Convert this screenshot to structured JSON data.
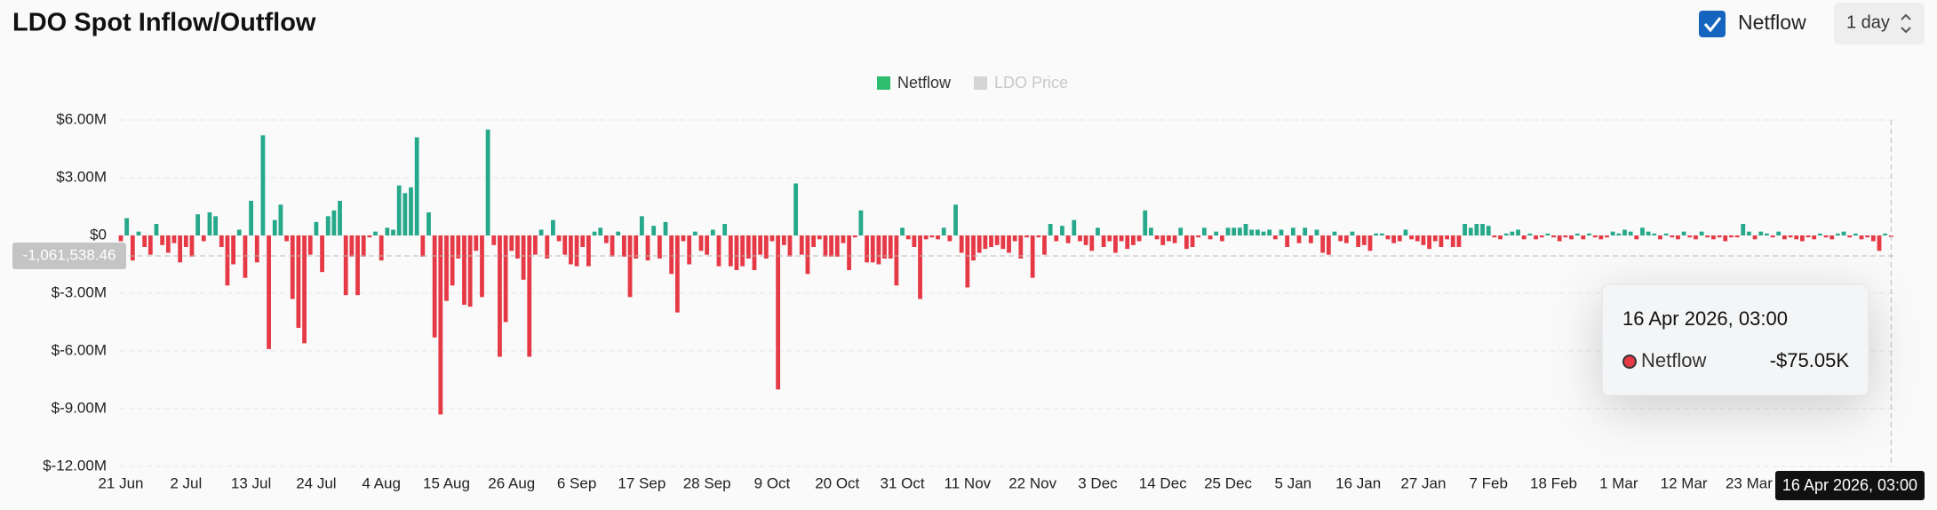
{
  "controls": {
    "toggle_label": "Netflow",
    "interval": "1 day"
  },
  "chart_data": {
    "type": "bar",
    "title": "LDO Spot Inflow/Outflow",
    "categories": [
      "21 Jun",
      null,
      null,
      null,
      null,
      null,
      null,
      null,
      null,
      null,
      null,
      "2 Jul",
      null,
      null,
      null,
      null,
      null,
      null,
      null,
      null,
      null,
      null,
      "13 Jul",
      null,
      null,
      null,
      null,
      null,
      null,
      null,
      null,
      null,
      null,
      "24 Jul",
      null,
      null,
      null,
      null,
      null,
      null,
      null,
      null,
      null,
      null,
      "4 Aug",
      null,
      null,
      null,
      null,
      null,
      null,
      null,
      null,
      null,
      null,
      "15 Aug",
      null,
      null,
      null,
      null,
      null,
      null,
      null,
      null,
      null,
      null,
      "26 Aug",
      null,
      null,
      null,
      null,
      null,
      null,
      null,
      null,
      null,
      null,
      "6 Sep",
      null,
      null,
      null,
      null,
      null,
      null,
      null,
      null,
      null,
      null,
      "17 Sep",
      null,
      null,
      null,
      null,
      null,
      null,
      null,
      null,
      null,
      null,
      "28 Sep",
      null,
      null,
      null,
      null,
      null,
      null,
      null,
      null,
      null,
      null,
      "9 Oct",
      null,
      null,
      null,
      null,
      null,
      null,
      null,
      null,
      null,
      null,
      "20 Oct",
      null,
      null,
      null,
      null,
      null,
      null,
      null,
      null,
      null,
      null,
      "31 Oct",
      null,
      null,
      null,
      null,
      null,
      null,
      null,
      null,
      null,
      null,
      "11 Nov",
      null,
      null,
      null,
      null,
      null,
      null,
      null,
      null,
      null,
      null,
      "22 Nov",
      null,
      null,
      null,
      null,
      null,
      null,
      null,
      null,
      null,
      null,
      "3 Dec",
      null,
      null,
      null,
      null,
      null,
      null,
      null,
      null,
      null,
      null,
      "14 Dec",
      null,
      null,
      null,
      null,
      null,
      null,
      null,
      null,
      null,
      null,
      "25 Dec",
      null,
      null,
      null,
      null,
      null,
      null,
      null,
      null,
      null,
      null,
      "5 Jan",
      null,
      null,
      null,
      null,
      null,
      null,
      null,
      null,
      null,
      null,
      "16 Jan",
      null,
      null,
      null,
      null,
      null,
      null,
      null,
      null,
      null,
      null,
      "27 Jan",
      null,
      null,
      null,
      null,
      null,
      null,
      null,
      null,
      null,
      null,
      "7 Feb",
      null,
      null,
      null,
      null,
      null,
      null,
      null,
      null,
      null,
      null,
      "18 Feb",
      null,
      null,
      null,
      null,
      null,
      null,
      null,
      null,
      null,
      null,
      "1 Mar",
      null,
      null,
      null,
      null,
      null,
      null,
      null,
      null,
      null,
      null,
      "12 Mar",
      null,
      null,
      null,
      null,
      null,
      null,
      null,
      null,
      null,
      null,
      "23 Mar",
      null,
      null,
      null,
      null,
      null,
      null,
      null,
      null,
      null,
      null,
      null,
      null,
      null,
      null,
      null,
      null,
      null,
      null,
      null,
      null,
      null,
      null,
      null,
      "16 Apr 2026, 03:00"
    ],
    "series": [
      {
        "name": "Netflow",
        "color": "#26a98b",
        "negative_color": "#e63946",
        "legend_color": "#2ebd6e",
        "values": [
          -0.3,
          0.9,
          -1.3,
          0.2,
          -0.6,
          -1.0,
          0.6,
          -0.5,
          -0.9,
          -0.4,
          -1.4,
          -0.6,
          -1.1,
          1.1,
          -0.3,
          1.2,
          1.0,
          -0.6,
          -2.6,
          -1.5,
          0.3,
          -2.2,
          1.8,
          -1.4,
          5.2,
          -5.9,
          0.8,
          1.6,
          -0.3,
          -3.3,
          -4.8,
          -5.6,
          -1.0,
          0.7,
          -1.9,
          1.0,
          1.3,
          1.8,
          -3.1,
          -1.1,
          -3.1,
          -1.1,
          -0.1,
          0.2,
          -1.3,
          0.4,
          0.3,
          2.6,
          2.2,
          2.5,
          5.1,
          -1.1,
          1.2,
          -5.3,
          -9.3,
          -3.4,
          -2.6,
          -1.2,
          -3.6,
          -3.7,
          -0.8,
          -3.2,
          5.5,
          -0.5,
          -6.3,
          -4.5,
          -0.8,
          -1.2,
          -2.3,
          -6.3,
          -1.0,
          0.3,
          -1.2,
          0.8,
          -0.3,
          -1.0,
          -1.5,
          -1.6,
          -0.6,
          -1.6,
          0.2,
          0.4,
          -0.4,
          -1.1,
          0.2,
          -1.1,
          -3.2,
          -1.2,
          1.0,
          -1.3,
          0.5,
          -1.2,
          0.7,
          -2.0,
          -4.0,
          -0.3,
          -1.5,
          0.2,
          -0.8,
          -1.0,
          0.3,
          -1.6,
          0.6,
          -1.6,
          -1.8,
          -1.6,
          -1.2,
          -1.8,
          -1.0,
          -1.2,
          -0.3,
          -8.0,
          -0.5,
          -1.1,
          2.7,
          -1.0,
          -2.0,
          -0.6,
          -0.2,
          -1.1,
          -1.1,
          -1.1,
          -0.4,
          -1.8,
          -0.1,
          1.3,
          -1.4,
          -1.4,
          -1.5,
          -1.2,
          -1.2,
          -2.6,
          0.4,
          -0.2,
          -0.6,
          -3.3,
          -0.2,
          -0.1,
          -0.2,
          0.4,
          -0.3,
          1.6,
          -0.9,
          -2.7,
          -1.3,
          -0.9,
          -0.7,
          -0.6,
          -0.5,
          -0.7,
          -0.9,
          -0.3,
          -1.2,
          -0.1,
          -2.2,
          -0.1,
          -1.0,
          0.6,
          -0.3,
          0.5,
          -0.4,
          0.8,
          -0.3,
          -0.5,
          -0.8,
          0.4,
          -0.6,
          -0.3,
          -0.9,
          -0.3,
          -0.7,
          -0.5,
          -0.3,
          1.3,
          0.4,
          -0.2,
          -0.5,
          -0.3,
          -0.4,
          0.4,
          -0.7,
          -0.6,
          -0.1,
          0.4,
          -0.2,
          0.2,
          -0.3,
          0.4,
          0.4,
          0.4,
          0.6,
          0.3,
          0.3,
          0.2,
          0.3,
          -0.2,
          0.3,
          -0.6,
          0.4,
          -0.4,
          0.4,
          -0.4,
          0.3,
          -0.9,
          -1.0,
          0.2,
          -0.3,
          -0.4,
          0.2,
          -0.6,
          -0.5,
          -0.8,
          0.1,
          0.1,
          -0.2,
          -0.4,
          -0.3,
          0.3,
          -0.2,
          -0.3,
          -0.5,
          -0.7,
          -0.3,
          -0.6,
          -0.2,
          -0.6,
          -0.6,
          0.6,
          0.4,
          0.6,
          0.6,
          0.5,
          -0.1,
          -0.2,
          0.1,
          0.2,
          0.3,
          -0.2,
          0.1,
          -0.2,
          -0.1,
          0.1,
          -0.1,
          -0.3,
          -0.1,
          -0.2,
          0.1,
          -0.2,
          0.1,
          -0.1,
          -0.2,
          -0.1,
          0.2,
          0.1,
          0.3,
          0.2,
          -0.2,
          0.4,
          0.2,
          0.1,
          -0.2,
          0.1,
          -0.1,
          -0.2,
          0.2,
          -0.1,
          -0.2,
          0.2,
          -0.1,
          -0.2,
          -0.1,
          -0.3,
          -0.1,
          -0.1,
          0.6,
          0.2,
          -0.2,
          0.2,
          0.1,
          -0.1,
          0.2,
          -0.2,
          -0.1,
          -0.2,
          -0.3,
          -0.1,
          -0.2,
          0.1,
          -0.1,
          -0.2,
          0.1,
          0.2,
          -0.1,
          0.1,
          -0.2,
          -0.1,
          -0.3,
          -0.8,
          0.1,
          -0.07505
        ]
      }
    ],
    "hidden_series": [
      {
        "name": "LDO Price",
        "color": "#d4d4d4"
      }
    ],
    "ylim": [
      -12,
      6
    ],
    "yticks": [
      {
        "value": -12,
        "label": "$-12.00M"
      },
      {
        "value": -9,
        "label": "$-9.00M"
      },
      {
        "value": -6,
        "label": "$-6.00M"
      },
      {
        "value": -3,
        "label": "$-3.00M"
      },
      {
        "value": 0,
        "label": "$0"
      },
      {
        "value": 3,
        "label": "$3.00M"
      },
      {
        "value": 6,
        "label": "$6.00M"
      }
    ],
    "grid": true,
    "crosshair_y": {
      "value": -1.06153846,
      "label": "-1,061,538.46"
    },
    "tooltip": {
      "index": 299,
      "value": -0.07505,
      "value_label": "-$75.05K"
    }
  }
}
